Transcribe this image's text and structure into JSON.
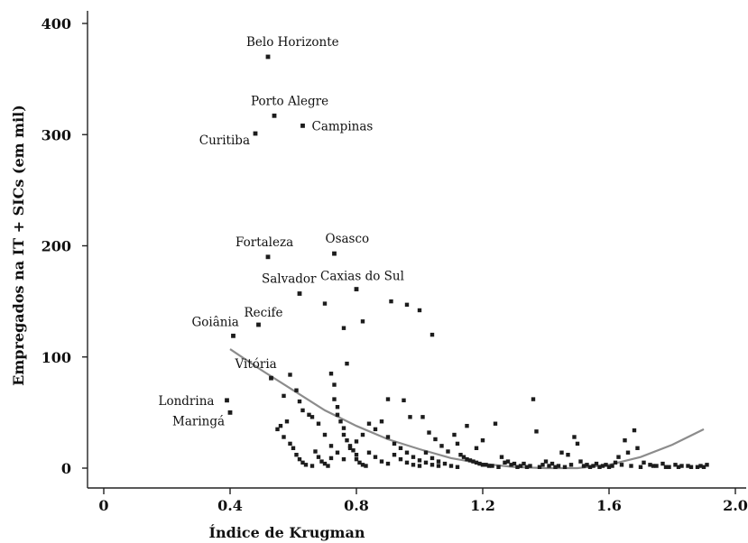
{
  "chart_data": {
    "type": "scatter",
    "xlabel": "Índice de Krugman",
    "ylabel": "Empregados na IT + SICs  (em mil)",
    "xlim": [
      0,
      2.0
    ],
    "ylim": [
      0,
      400
    ],
    "x_ticks": [
      "0",
      "0.4",
      "0.8",
      "1.2",
      "1.6",
      "2.0"
    ],
    "y_ticks": [
      "0",
      "100",
      "200",
      "300",
      "400"
    ],
    "x_tick_values": [
      0,
      0.4,
      0.8,
      1.2,
      1.6,
      2.0
    ],
    "y_tick_values": [
      0,
      100,
      200,
      300,
      400
    ],
    "grid": false,
    "labeled_points": [
      {
        "label": "Belo Horizonte",
        "x": 0.52,
        "y": 370
      },
      {
        "label": "Porto Alegre",
        "x": 0.54,
        "y": 317
      },
      {
        "label": "Campinas",
        "x": 0.63,
        "y": 308
      },
      {
        "label": "Curitiba",
        "x": 0.48,
        "y": 301
      },
      {
        "label": "Fortaleza",
        "x": 0.52,
        "y": 190
      },
      {
        "label": "Osasco",
        "x": 0.73,
        "y": 193
      },
      {
        "label": "Salvador",
        "x": 0.62,
        "y": 157
      },
      {
        "label": "Caxias do Sul",
        "x": 0.8,
        "y": 161
      },
      {
        "label": "Recife",
        "x": 0.49,
        "y": 129
      },
      {
        "label": "Goiânia",
        "x": 0.41,
        "y": 119
      },
      {
        "label": "Vitória",
        "x": 0.53,
        "y": 81
      },
      {
        "label": "Londrina",
        "x": 0.39,
        "y": 61
      },
      {
        "label": "Maringá",
        "x": 0.4,
        "y": 50
      }
    ],
    "points": [
      [
        0.59,
        84
      ],
      [
        0.61,
        70
      ],
      [
        0.57,
        65
      ],
      [
        0.62,
        60
      ],
      [
        0.63,
        52
      ],
      [
        0.65,
        48
      ],
      [
        0.66,
        46
      ],
      [
        0.58,
        42
      ],
      [
        0.56,
        38
      ],
      [
        0.55,
        35
      ],
      [
        0.57,
        28
      ],
      [
        0.59,
        22
      ],
      [
        0.6,
        18
      ],
      [
        0.61,
        12
      ],
      [
        0.62,
        8
      ],
      [
        0.63,
        5
      ],
      [
        0.64,
        3
      ],
      [
        0.66,
        2
      ],
      [
        0.67,
        15
      ],
      [
        0.68,
        10
      ],
      [
        0.69,
        6
      ],
      [
        0.7,
        4
      ],
      [
        0.71,
        2
      ],
      [
        0.72,
        9
      ],
      [
        0.72,
        85
      ],
      [
        0.73,
        75
      ],
      [
        0.73,
        62
      ],
      [
        0.74,
        55
      ],
      [
        0.74,
        48
      ],
      [
        0.75,
        42
      ],
      [
        0.76,
        36
      ],
      [
        0.76,
        30
      ],
      [
        0.77,
        94
      ],
      [
        0.77,
        25
      ],
      [
        0.78,
        20
      ],
      [
        0.79,
        16
      ],
      [
        0.8,
        12
      ],
      [
        0.8,
        8
      ],
      [
        0.81,
        5
      ],
      [
        0.82,
        3
      ],
      [
        0.83,
        2
      ],
      [
        0.76,
        126
      ],
      [
        0.82,
        132
      ],
      [
        0.91,
        150
      ],
      [
        0.96,
        147
      ],
      [
        1.0,
        142
      ],
      [
        1.04,
        120
      ],
      [
        0.7,
        148
      ],
      [
        0.84,
        40
      ],
      [
        0.86,
        35
      ],
      [
        0.88,
        42
      ],
      [
        0.9,
        28
      ],
      [
        0.92,
        22
      ],
      [
        0.94,
        18
      ],
      [
        0.96,
        14
      ],
      [
        0.98,
        10
      ],
      [
        1.0,
        7
      ],
      [
        1.02,
        5
      ],
      [
        1.04,
        3
      ],
      [
        1.06,
        2
      ],
      [
        0.9,
        62
      ],
      [
        0.95,
        61
      ],
      [
        0.97,
        46
      ],
      [
        1.01,
        46
      ],
      [
        1.03,
        32
      ],
      [
        1.05,
        26
      ],
      [
        1.07,
        20
      ],
      [
        1.09,
        15
      ],
      [
        1.11,
        30
      ],
      [
        1.13,
        12
      ],
      [
        1.15,
        8
      ],
      [
        1.17,
        6
      ],
      [
        1.19,
        4
      ],
      [
        1.21,
        3
      ],
      [
        1.23,
        2
      ],
      [
        1.12,
        22
      ],
      [
        1.15,
        38
      ],
      [
        1.18,
        18
      ],
      [
        1.2,
        25
      ],
      [
        1.24,
        40
      ],
      [
        1.26,
        10
      ],
      [
        1.28,
        6
      ],
      [
        1.3,
        4
      ],
      [
        1.32,
        2
      ],
      [
        1.34,
        1
      ],
      [
        1.36,
        62
      ],
      [
        1.37,
        33
      ],
      [
        1.39,
        3
      ],
      [
        1.41,
        2
      ],
      [
        1.43,
        1
      ],
      [
        1.45,
        14
      ],
      [
        1.47,
        12
      ],
      [
        1.49,
        28
      ],
      [
        1.5,
        22
      ],
      [
        1.51,
        6
      ],
      [
        1.53,
        3
      ],
      [
        1.55,
        2
      ],
      [
        1.57,
        1
      ],
      [
        1.59,
        3
      ],
      [
        1.61,
        2
      ],
      [
        1.63,
        10
      ],
      [
        1.65,
        25
      ],
      [
        1.66,
        14
      ],
      [
        1.68,
        34
      ],
      [
        1.69,
        18
      ],
      [
        1.71,
        5
      ],
      [
        1.73,
        3
      ],
      [
        1.75,
        2
      ],
      [
        1.77,
        4
      ],
      [
        1.79,
        1
      ],
      [
        1.81,
        3
      ],
      [
        1.83,
        2
      ],
      [
        1.86,
        1
      ],
      [
        1.89,
        2
      ],
      [
        1.91,
        3
      ],
      [
        0.68,
        40
      ],
      [
        0.7,
        30
      ],
      [
        0.72,
        20
      ],
      [
        0.74,
        14
      ],
      [
        0.76,
        8
      ],
      [
        0.78,
        18
      ],
      [
        0.8,
        24
      ],
      [
        0.82,
        30
      ],
      [
        0.84,
        14
      ],
      [
        0.86,
        10
      ],
      [
        0.88,
        6
      ],
      [
        0.9,
        4
      ],
      [
        0.92,
        12
      ],
      [
        0.94,
        8
      ],
      [
        0.96,
        5
      ],
      [
        0.98,
        3
      ],
      [
        1.0,
        2
      ],
      [
        1.02,
        14
      ],
      [
        1.04,
        9
      ],
      [
        1.06,
        6
      ],
      [
        1.08,
        4
      ],
      [
        1.1,
        2
      ],
      [
        1.12,
        1
      ],
      [
        1.14,
        10
      ],
      [
        1.16,
        7
      ],
      [
        1.18,
        5
      ],
      [
        1.2,
        3
      ],
      [
        1.22,
        2
      ],
      [
        1.25,
        1
      ],
      [
        1.27,
        5
      ],
      [
        1.29,
        3
      ],
      [
        1.31,
        1
      ],
      [
        1.33,
        4
      ],
      [
        1.35,
        2
      ],
      [
        1.38,
        1
      ],
      [
        1.4,
        6
      ],
      [
        1.42,
        4
      ],
      [
        1.44,
        2
      ],
      [
        1.46,
        1
      ],
      [
        1.48,
        3
      ],
      [
        1.52,
        2
      ],
      [
        1.54,
        1
      ],
      [
        1.56,
        4
      ],
      [
        1.58,
        2
      ],
      [
        1.6,
        1
      ],
      [
        1.62,
        5
      ],
      [
        1.64,
        3
      ],
      [
        1.67,
        2
      ],
      [
        1.7,
        1
      ],
      [
        1.74,
        2
      ],
      [
        1.78,
        1
      ],
      [
        1.82,
        1
      ],
      [
        1.85,
        2
      ],
      [
        1.88,
        1
      ],
      [
        1.9,
        1
      ]
    ],
    "fit_line": {
      "type": "quadratic",
      "x": [
        0.4,
        0.5,
        0.6,
        0.7,
        0.8,
        0.9,
        1.0,
        1.1,
        1.2,
        1.3,
        1.4,
        1.5,
        1.6,
        1.7,
        1.8,
        1.9
      ],
      "y": [
        107,
        88,
        70,
        52,
        38,
        26,
        17,
        9,
        4,
        1,
        0,
        0,
        3,
        10,
        21,
        35
      ]
    }
  }
}
